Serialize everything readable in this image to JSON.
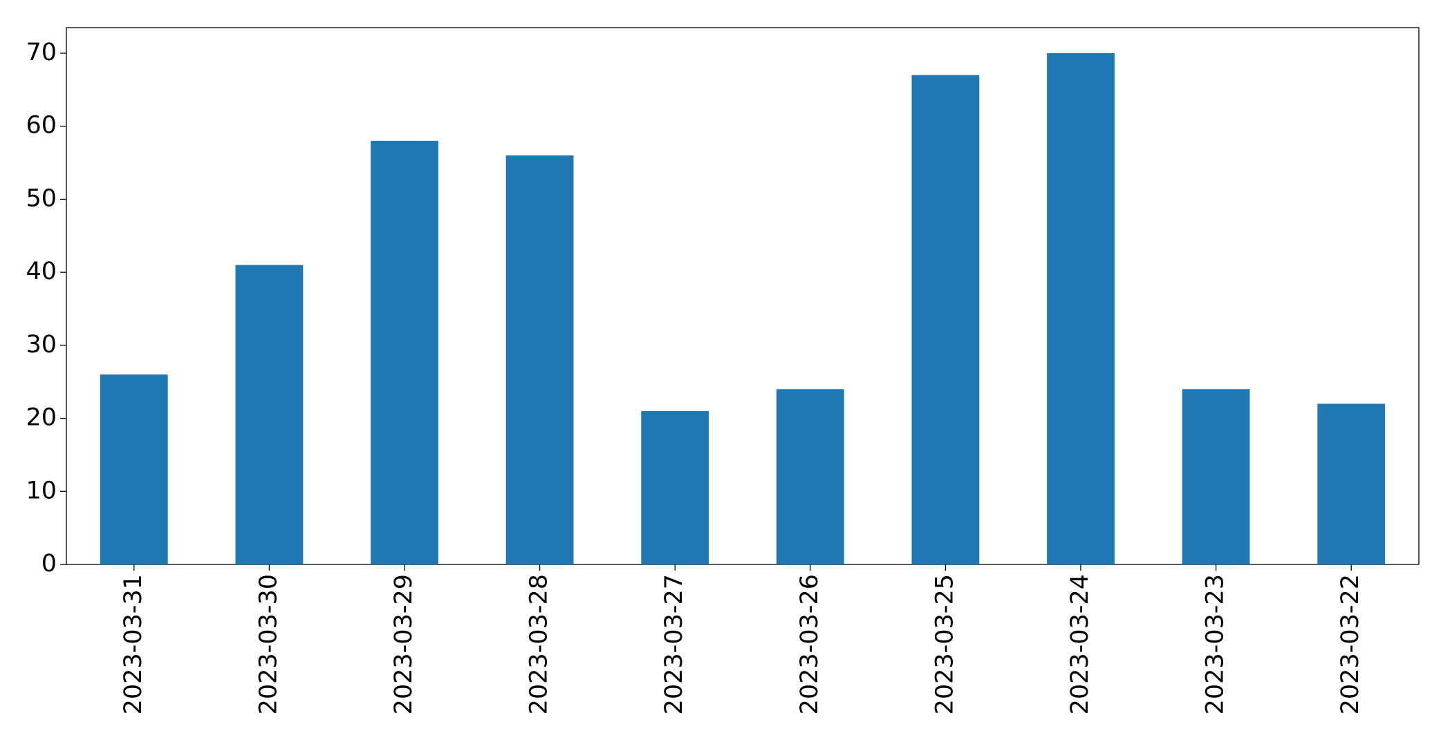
{
  "chart_data": {
    "type": "bar",
    "categories": [
      "2023-03-31",
      "2023-03-30",
      "2023-03-29",
      "2023-03-28",
      "2023-03-27",
      "2023-03-26",
      "2023-03-25",
      "2023-03-24",
      "2023-03-23",
      "2023-03-22"
    ],
    "values": [
      26,
      41,
      58,
      56,
      21,
      24,
      67,
      70,
      24,
      22
    ],
    "color": "#1f77b4",
    "ylim": [
      0,
      73.5
    ],
    "yticks": [
      0,
      10,
      20,
      30,
      40,
      50,
      60,
      70
    ],
    "grid": false
  }
}
